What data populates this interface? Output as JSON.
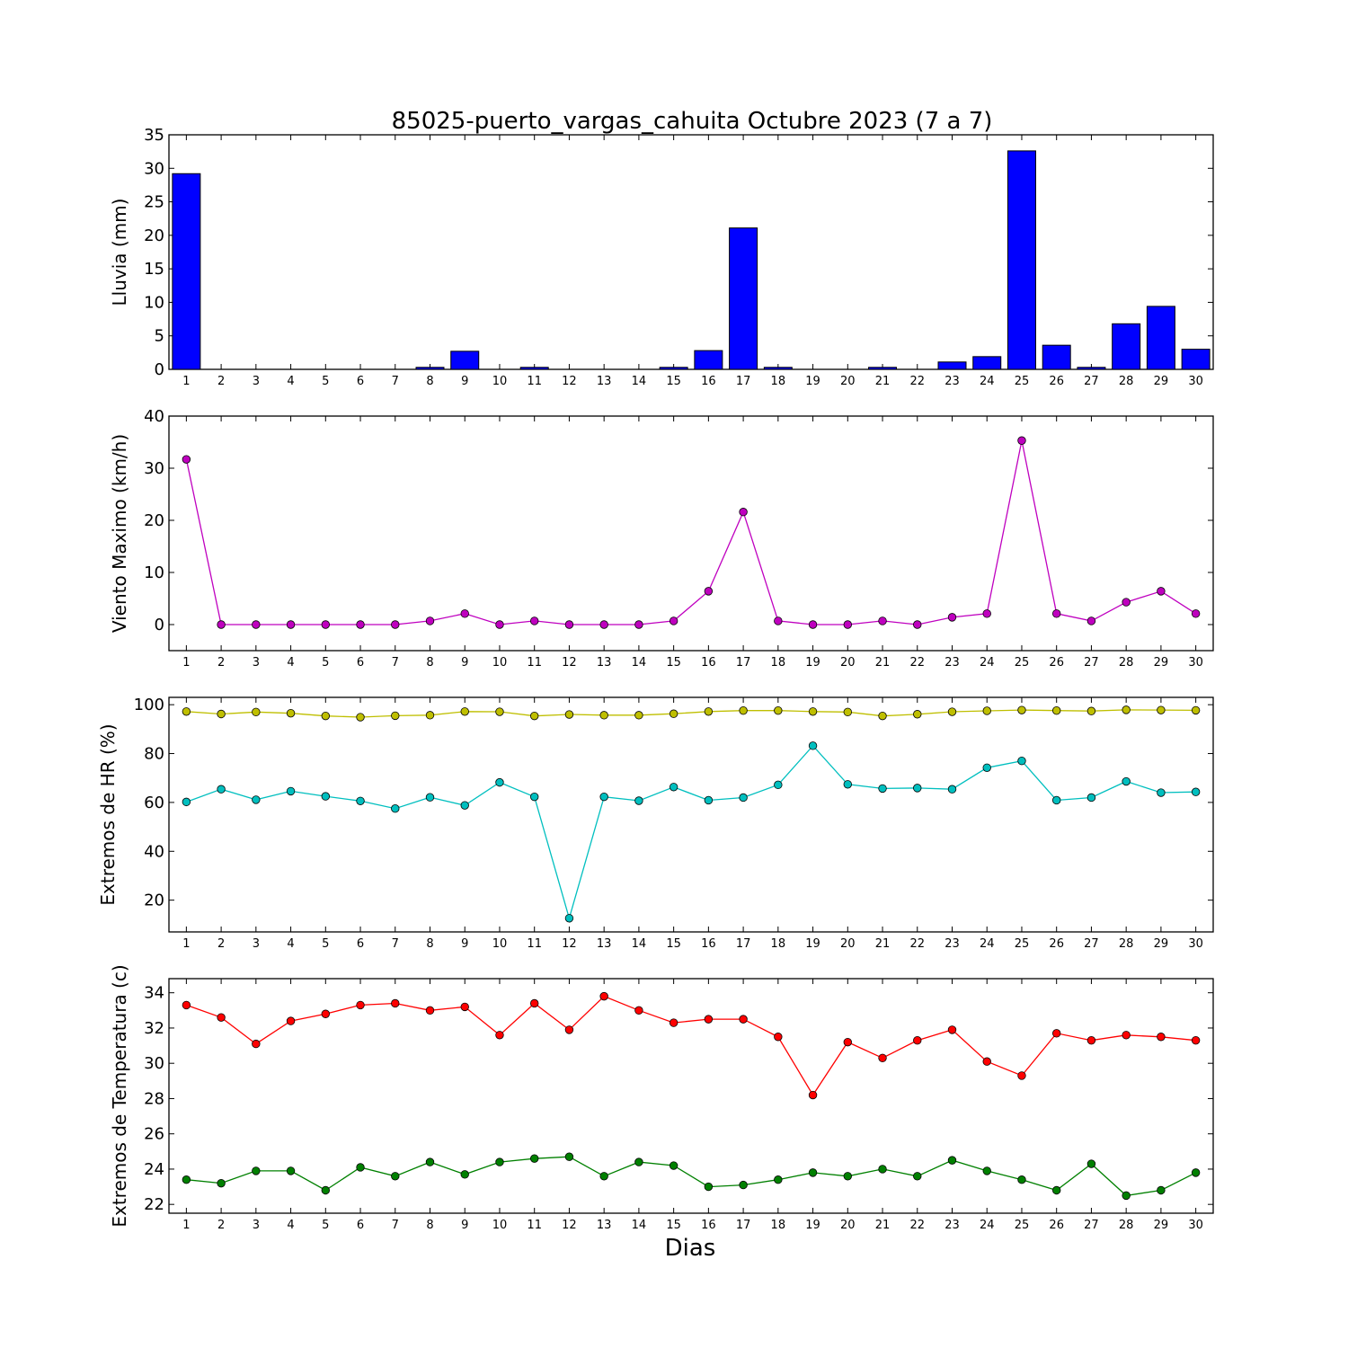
{
  "title": "85025-puerto_vargas_cahuita Octubre 2023  (7 a 7)",
  "chart_data": [
    {
      "type": "bar",
      "ylabel": "Lluvia (mm)",
      "ylim": [
        0,
        35
      ],
      "yticks": [
        0,
        5,
        10,
        15,
        20,
        25,
        30,
        35
      ],
      "x": [
        1,
        2,
        3,
        4,
        5,
        6,
        7,
        8,
        9,
        10,
        11,
        12,
        13,
        14,
        15,
        16,
        17,
        18,
        19,
        20,
        21,
        22,
        23,
        24,
        25,
        26,
        27,
        28,
        29,
        30
      ],
      "series": [
        {
          "color": "#0000ff",
          "values": [
            29.2,
            0,
            0,
            0,
            0,
            0,
            0,
            0.3,
            2.7,
            0,
            0.3,
            0,
            0,
            0,
            0.3,
            2.8,
            21.1,
            0.3,
            0,
            0,
            0.3,
            0,
            1.1,
            1.9,
            32.6,
            3.6,
            0.3,
            6.8,
            9.4,
            3.0
          ]
        }
      ]
    },
    {
      "type": "line",
      "ylabel": "Viento Maximo (km/h)",
      "ylim": [
        -5,
        40
      ],
      "yticks": [
        0,
        10,
        20,
        30,
        40
      ],
      "x": [
        1,
        2,
        3,
        4,
        5,
        6,
        7,
        8,
        9,
        10,
        11,
        12,
        13,
        14,
        15,
        16,
        17,
        18,
        19,
        20,
        21,
        22,
        23,
        24,
        25,
        26,
        27,
        28,
        29,
        30
      ],
      "series": [
        {
          "color": "#bf00bf",
          "values": [
            31.7,
            0,
            0,
            0,
            0,
            0,
            0,
            0.7,
            2.1,
            0,
            0.7,
            0,
            0,
            0,
            0.7,
            6.4,
            21.6,
            0.7,
            0,
            0,
            0.7,
            0,
            1.4,
            2.1,
            35.3,
            2.1,
            0.7,
            4.3,
            6.4,
            2.1
          ]
        }
      ]
    },
    {
      "type": "line",
      "ylabel": "Extremos de HR (%)",
      "ylim": [
        7,
        103
      ],
      "yticks": [
        20,
        40,
        60,
        80,
        100
      ],
      "x": [
        1,
        2,
        3,
        4,
        5,
        6,
        7,
        8,
        9,
        10,
        11,
        12,
        13,
        14,
        15,
        16,
        17,
        18,
        19,
        20,
        21,
        22,
        23,
        24,
        25,
        26,
        27,
        28,
        29,
        30
      ],
      "series": [
        {
          "color": "#bfbf00",
          "values": [
            97.2,
            96.2,
            97.0,
            96.5,
            95.4,
            94.9,
            95.5,
            95.7,
            97.2,
            97.1,
            95.4,
            96.0,
            95.7,
            95.7,
            96.3,
            97.2,
            97.6,
            97.6,
            97.2,
            97.0,
            95.4,
            96.1,
            97.1,
            97.5,
            97.8,
            97.6,
            97.4,
            97.9,
            97.8,
            97.7
          ]
        },
        {
          "color": "#00bfbf",
          "values": [
            60.2,
            65.4,
            61.1,
            64.6,
            62.5,
            60.6,
            57.5,
            62.1,
            58.8,
            68.2,
            62.3,
            12.6,
            62.3,
            60.7,
            66.3,
            60.9,
            62.0,
            67.2,
            83.2,
            67.4,
            65.7,
            65.9,
            65.4,
            74.2,
            77.0,
            60.9,
            62.0,
            68.6,
            64.0,
            64.3
          ]
        }
      ]
    },
    {
      "type": "line",
      "ylabel": "Extremos de Temperatura (c)",
      "xlabel": "Dias",
      "ylim": [
        21.5,
        34.8
      ],
      "yticks": [
        22,
        24,
        26,
        28,
        30,
        32,
        34
      ],
      "x": [
        1,
        2,
        3,
        4,
        5,
        6,
        7,
        8,
        9,
        10,
        11,
        12,
        13,
        14,
        15,
        16,
        17,
        18,
        19,
        20,
        21,
        22,
        23,
        24,
        25,
        26,
        27,
        28,
        29,
        30
      ],
      "series": [
        {
          "color": "#ff0000",
          "values": [
            33.3,
            32.6,
            31.1,
            32.4,
            32.8,
            33.3,
            33.4,
            33.0,
            33.2,
            31.6,
            33.4,
            31.9,
            33.8,
            33.0,
            32.3,
            32.5,
            32.5,
            31.5,
            28.2,
            31.2,
            30.3,
            31.3,
            31.9,
            30.1,
            29.3,
            31.7,
            31.3,
            31.6,
            31.5,
            31.3
          ]
        },
        {
          "color": "#008000",
          "values": [
            23.4,
            23.2,
            23.9,
            23.9,
            22.8,
            24.1,
            23.6,
            24.4,
            23.7,
            24.4,
            24.6,
            24.7,
            23.6,
            24.4,
            24.2,
            23.0,
            23.1,
            23.4,
            23.8,
            23.6,
            24.0,
            23.6,
            24.5,
            23.9,
            23.4,
            22.8,
            24.3,
            22.5,
            22.8,
            23.8
          ]
        }
      ]
    }
  ]
}
